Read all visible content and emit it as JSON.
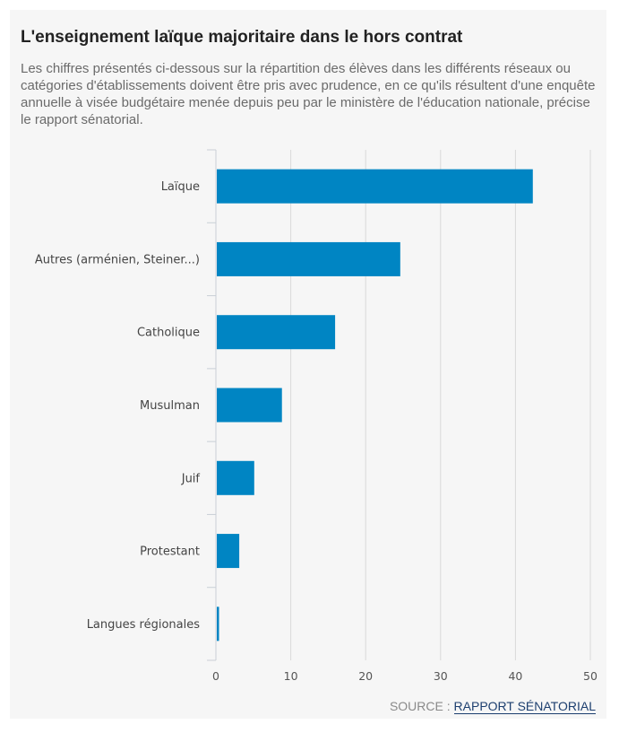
{
  "header": {
    "title": "L'enseignement laïque majoritaire dans le hors contrat",
    "subtitle": "Les chiffres présentés ci-dessous sur la répartition des élèves dans les différents réseaux ou catégories d'établissements doivent être pris avec prudence, en ce qu'ils résultent d'une enquête annuelle à visée budgétaire menée depuis peu par le ministère de l'éducation nationale, précise le rapport sénatorial."
  },
  "chart_data": {
    "type": "bar",
    "orientation": "horizontal",
    "title": "L'enseignement laïque majoritaire dans le hors contrat",
    "categories": [
      "Laïque",
      "Autres (arménien, Steiner...)",
      "Catholique",
      "Musulman",
      "Juif",
      "Protestant",
      "Langues régionales"
    ],
    "values": [
      42.2,
      24.5,
      15.8,
      8.7,
      5.0,
      3.0,
      0.3
    ],
    "xlim": [
      0,
      50
    ],
    "xticks": [
      0,
      10,
      20,
      30,
      40,
      50
    ],
    "xlabel": "",
    "ylabel": "",
    "grid": "vertical",
    "legend": "none",
    "bar_color": "#0085c3"
  },
  "source": {
    "prefix": "SOURCE : ",
    "link_text": "RAPPORT SÉNATORIAL"
  }
}
